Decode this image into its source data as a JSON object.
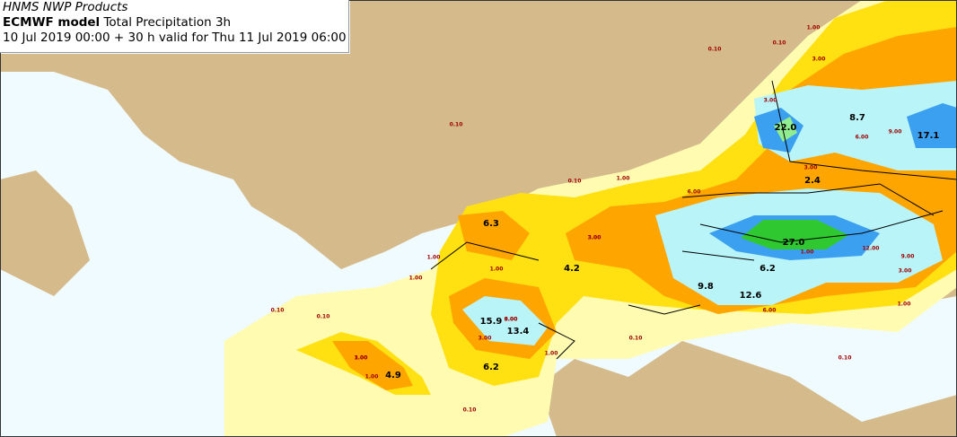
{
  "header": {
    "source": "HNMS NWP Products",
    "model": "ECMWF model",
    "product": "Total Precipitation 3h",
    "valid": "10 Jul 2019 00:00 + 30 h valid for Thu 11 Jul 2019 06:00"
  },
  "maxima": [
    "6.3",
    "4.2",
    "22.0",
    "8.7",
    "17.1",
    "2.4",
    "27.0",
    "6.2",
    "9.8",
    "12.6",
    "15.9",
    "13.4",
    "4.9",
    "6.2"
  ],
  "contour_labels": [
    "0.10",
    "1.00",
    "0.10",
    "3.00",
    "3.00",
    "0.10",
    "0.10",
    "1.00",
    "6.00",
    "6.00",
    "9.00",
    "3.00",
    "3.00",
    "1.00",
    "1.00",
    "1.00",
    "0.10",
    "0.10",
    "1.00",
    "3.00",
    "6.00",
    "12.00",
    "9.00",
    "3.00",
    "1.00",
    "6.00",
    "1.00",
    "3.00",
    "1.00",
    "9.00",
    "3.00",
    "0.10",
    "0.10",
    "0.10",
    "1.00"
  ]
}
